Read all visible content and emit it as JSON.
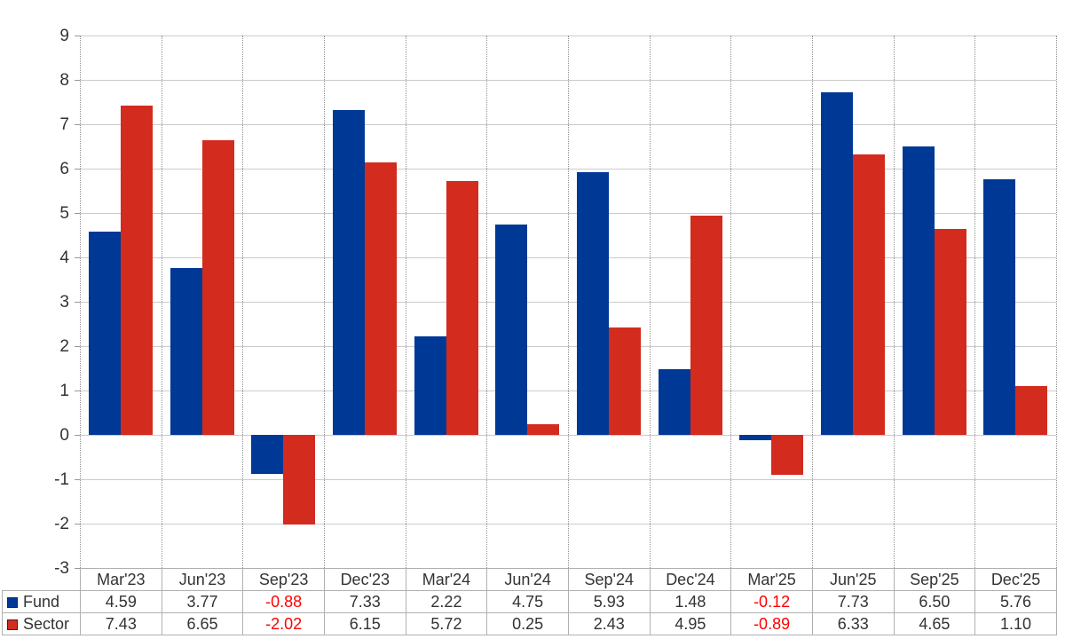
{
  "chart_data": {
    "type": "bar",
    "title": "",
    "xlabel": "",
    "ylabel": "",
    "categories": [
      "Mar'23",
      "Jun'23",
      "Sep'23",
      "Dec'23",
      "Mar'24",
      "Jun'24",
      "Sep'24",
      "Dec'24",
      "Mar'25",
      "Jun'25",
      "Sep'25",
      "Dec'25"
    ],
    "series": [
      {
        "name": "Fund",
        "color": "#003896",
        "values": [
          4.59,
          3.77,
          -0.88,
          7.33,
          2.22,
          4.75,
          5.93,
          1.48,
          -0.12,
          7.73,
          6.5,
          5.76
        ]
      },
      {
        "name": "Sector",
        "color": "#D32B1E",
        "values": [
          7.43,
          6.65,
          -2.02,
          6.15,
          5.72,
          0.25,
          2.43,
          4.95,
          -0.89,
          6.33,
          4.65,
          1.1
        ]
      }
    ],
    "ylim": [
      -3,
      9
    ],
    "ytick_step": 1,
    "value_decimals": 2,
    "grid": {
      "horizontal": "solid",
      "vertical": "dotted"
    },
    "legend_position": "data-table-left-column",
    "data_table_shown": true
  },
  "style": {
    "fund_color": "#003896",
    "sector_color": "#D32B1E",
    "h_grid_color": "#cbcbcb",
    "v_grid_color": "#909090",
    "table_border_color": "#b0b0b0",
    "text_color": "#333333",
    "negative_text_color": "#ff0000",
    "background": "#ffffff"
  }
}
